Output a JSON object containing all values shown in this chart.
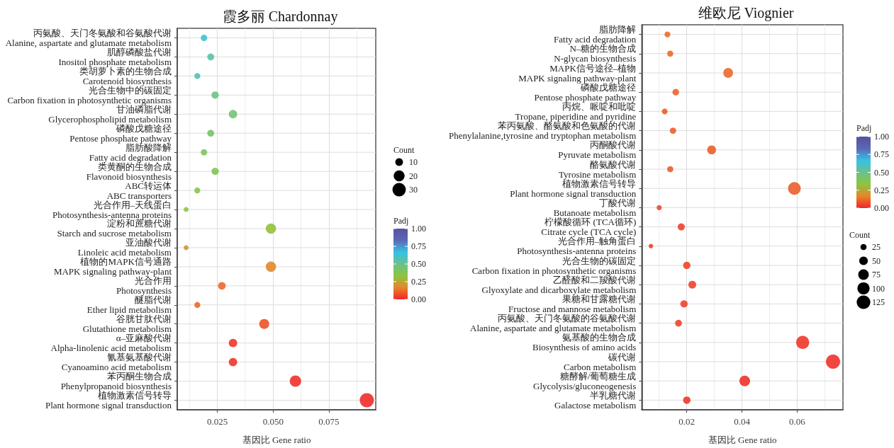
{
  "chart_data": [
    {
      "type": "bubble",
      "orientation": "horizontal",
      "title": "霞多丽 Chardonnay",
      "xlabel": "基因比 Gene ratio",
      "legend_title": "Count",
      "clabel": "Padj",
      "categories": [
        "丙氨酸、天门冬氨酸和谷氨酸代谢\nAlanine, aspartate and glutamate metabolism",
        "肌醇磷酸盐代谢\nInositol phosphate metabolism",
        "类胡萝卜素的生物合成\nCarotenoid biosynthesis",
        "光合生物中的碳固定\nCarbon fixation in photosynthetic organisms",
        "甘油磷脂代谢\nGlycerophospholipid metabolism",
        "磷酸戊糖途径\nPentose phosphate pathway",
        "脂肪酸降解\nFatty acid degradation",
        "类黄酮的生物合成\nFlavonoid biosynthesis",
        "ABC转运体\nABC transporters",
        "光合作用–天线蛋白\nPhotosynthesis-antenna proteins",
        "淀粉和蔗糖代谢\nStarch and sucrose metabolism",
        "亚油酸代谢\nLinoleic acid metabolism",
        "植物的MAPK信号通路\nMAPK signaling pathway-plant",
        "光合作用\nPhotosynthesis",
        "醚脂代谢\nEther lipid metabolism",
        "谷胱甘肽代谢\nGlutathione metabolism",
        "α–亚麻酸代谢\nAlpha-linolenic acid metabolism",
        "氰基氨基酸代谢\nCyanoamino acid metabolism",
        "苯丙酮生物合成\nPhenylpropanoid biosynthesis",
        "植物激素信号转导\nPlant hormone signal transduction"
      ],
      "values": [
        0.019,
        0.022,
        0.016,
        0.024,
        0.032,
        0.022,
        0.019,
        0.024,
        0.016,
        0.011,
        0.049,
        0.011,
        0.049,
        0.027,
        0.016,
        0.046,
        0.032,
        0.032,
        0.06,
        0.092
      ],
      "sizes": [
        7,
        8,
        6,
        9,
        12,
        8,
        7,
        9,
        6,
        4,
        18,
        4,
        18,
        10,
        6,
        17,
        12,
        12,
        22,
        34
      ],
      "cvalues": [
        0.62,
        0.55,
        0.57,
        0.48,
        0.45,
        0.42,
        0.4,
        0.38,
        0.36,
        0.33,
        0.32,
        0.22,
        0.18,
        0.12,
        0.12,
        0.08,
        0.03,
        0.03,
        0.02,
        0.01
      ],
      "size_legend": [
        10,
        20,
        30
      ],
      "clim": [
        0,
        1
      ],
      "cticks": [
        {
          "value": 0,
          "label": "0.00"
        },
        {
          "value": 0.25,
          "label": "0.25"
        },
        {
          "value": 0.5,
          "label": "0.50"
        },
        {
          "value": 0.75,
          "label": "0.75"
        },
        {
          "value": 1,
          "label": "1.00"
        }
      ],
      "xlim": [
        0.007,
        0.096
      ],
      "xticks": [
        {
          "value": 0.0125,
          "label": null
        },
        {
          "value": 0.025,
          "label": "0.025"
        },
        {
          "value": 0.0375,
          "label": null
        },
        {
          "value": 0.05,
          "label": "0.050"
        },
        {
          "value": 0.0625,
          "label": null
        },
        {
          "value": 0.075,
          "label": "0.075"
        },
        {
          "value": 0.0875,
          "label": null
        }
      ],
      "grid": true,
      "marker": "circle"
    },
    {
      "type": "bubble",
      "orientation": "horizontal",
      "title": "维欧尼 Viognier",
      "xlabel": "基因比 Gene ratio",
      "legend_title": "Count",
      "clabel": "Padj",
      "categories": [
        "脂肪降解\nFatty acid degradation",
        "N–糖的生物合成\nN-glycan biosynthesis",
        "MAPK信号途径–植物\nMAPK signaling pathway-plant",
        "磷酸戊糖途径\nPentose phosphate pathway",
        "丙烷、哌啶和吡啶\nTropane, piperidine and pyridine",
        "苯丙氨酸、酪氨酸和色氨酸的代谢\nPhenylalanine,tyrosine and tryptophan metabolism",
        "丙酮酸代谢\nPyruvate metabolism",
        "酪氨酸代谢\nTyrosine metabolism",
        "植物激素信号转导\nPlant hormone signal transduction",
        "丁酸代谢\nButanoate metabolism",
        "柠檬酸循环 (TCA循环)\nCitrate cycle (TCA cycle)",
        "光合作用–触角蛋白\nPhotosynthesis-antenna proteins",
        "光合生物的碳固定\nCarbon fixation in photosynthetic organisms",
        "乙醛酸和二羧酸代谢\nGlyoxylate and dicarboxylate metabolism",
        "果糖和甘露糖代谢\nFructose and mannose metabolism",
        "丙氨酸、天门冬氨酸的谷氨酸代谢\nAlanine, aspartate and glutamate metabolism",
        "氨基酸的生物合成\nBiosynthesis of amino acids",
        "碳代谢\nCarbon metabolism",
        "糖酵解/葡萄糖生成\nGlycolysis/gluconeogenesis",
        "半乳糖代谢\nGalactose metabolism"
      ],
      "values": [
        0.013,
        0.014,
        0.035,
        0.016,
        0.012,
        0.015,
        0.029,
        0.014,
        0.059,
        0.01,
        0.018,
        0.007,
        0.02,
        0.022,
        0.019,
        0.017,
        0.062,
        0.073,
        0.041,
        0.02
      ],
      "sizes": [
        23,
        25,
        64,
        29,
        22,
        27,
        53,
        25,
        108,
        18,
        34,
        13,
        37,
        41,
        36,
        31,
        115,
        135,
        76,
        37
      ],
      "cvalues": [
        0.13,
        0.12,
        0.12,
        0.11,
        0.1,
        0.1,
        0.1,
        0.1,
        0.1,
        0.07,
        0.05,
        0.04,
        0.05,
        0.05,
        0.05,
        0.05,
        0.03,
        0.02,
        0.02,
        0.03
      ],
      "size_legend": [
        25,
        50,
        75,
        100,
        125
      ],
      "clim": [
        0,
        1
      ],
      "cticks": [
        {
          "value": 0,
          "label": "0.00"
        },
        {
          "value": 0.25,
          "label": "0.25"
        },
        {
          "value": 0.5,
          "label": "0.50"
        },
        {
          "value": 0.75,
          "label": "0.75"
        },
        {
          "value": 1,
          "label": "1.00"
        }
      ],
      "xlim": [
        0.0037,
        0.0766
      ],
      "xticks": [
        {
          "value": 0.01,
          "label": null
        },
        {
          "value": 0.02,
          "label": "0.02"
        },
        {
          "value": 0.03,
          "label": null
        },
        {
          "value": 0.04,
          "label": "0.04"
        },
        {
          "value": 0.05,
          "label": null
        },
        {
          "value": 0.06,
          "label": "0.06"
        },
        {
          "value": 0.07,
          "label": null
        }
      ],
      "grid": true,
      "marker": "circle"
    }
  ]
}
